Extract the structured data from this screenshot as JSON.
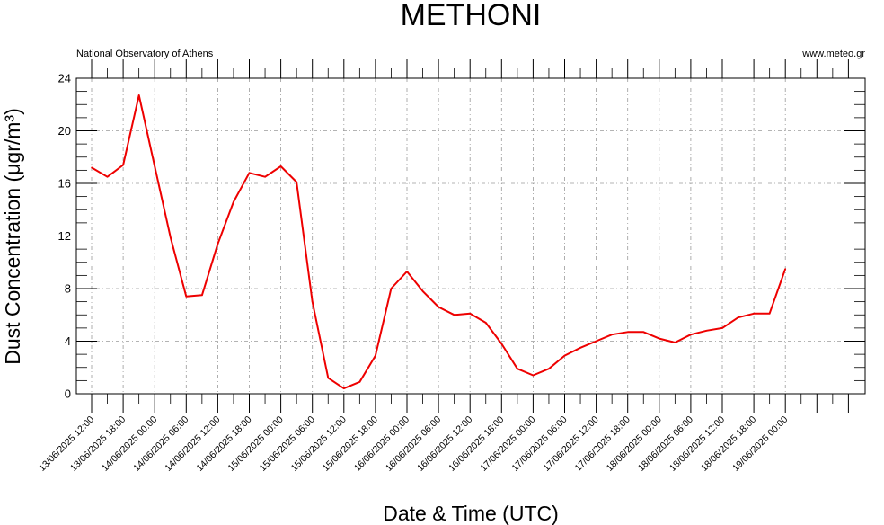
{
  "header": {
    "left_note": "National Observatory of Athens",
    "right_note": "www.meteo.gr"
  },
  "chart_data": {
    "type": "line",
    "title": "METHONI",
    "xlabel": "Date & Time (UTC)",
    "ylabel": "Dust Concentration (μgr/m³)",
    "ylim": [
      0,
      24
    ],
    "yticks": [
      0,
      4,
      8,
      12,
      16,
      20,
      24
    ],
    "grid": true,
    "x_tick_labels": [
      "13/06/2025 12:00",
      "13/06/2025 18:00",
      "14/06/2025 00:00",
      "14/06/2025 06:00",
      "14/06/2025 12:00",
      "14/06/2025 18:00",
      "15/06/2025 00:00",
      "15/06/2025 06:00",
      "15/06/2025 12:00",
      "15/06/2025 18:00",
      "16/06/2025 00:00",
      "16/06/2025 06:00",
      "16/06/2025 12:00",
      "16/06/2025 18:00",
      "17/06/2025 00:00",
      "17/06/2025 06:00",
      "17/06/2025 12:00",
      "17/06/2025 18:00",
      "18/06/2025 00:00",
      "18/06/2025 06:00",
      "18/06/2025 12:00",
      "18/06/2025 18:00",
      "19/06/2025 00:00"
    ],
    "series": [
      {
        "color": "#ee0000",
        "values": [
          17.2,
          16.5,
          17.4,
          22.7,
          17.3,
          11.9,
          7.4,
          7.5,
          11.4,
          14.6,
          16.8,
          16.5,
          17.3,
          16.1,
          7.0,
          1.2,
          0.4,
          0.9,
          2.9,
          8.0,
          9.3,
          7.8,
          6.6,
          6.0,
          6.1,
          5.4,
          3.8,
          1.9,
          1.4,
          1.9,
          2.9,
          3.5,
          4.0,
          4.5,
          4.7,
          4.7,
          4.2,
          3.9,
          4.5,
          4.8,
          5.0,
          5.8,
          6.1,
          6.1,
          9.5
        ]
      }
    ]
  }
}
